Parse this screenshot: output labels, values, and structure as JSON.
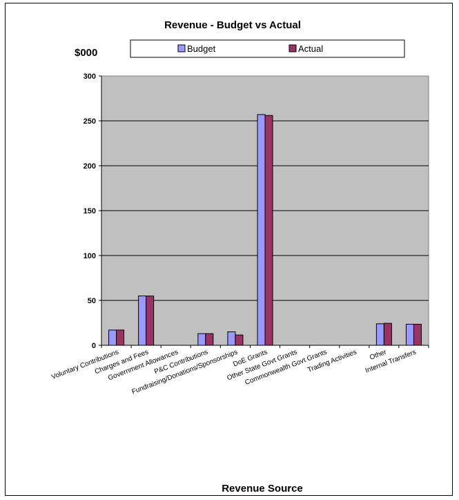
{
  "chart_data": {
    "type": "bar",
    "title": "Revenue - Budget vs Actual",
    "ylabel": "$000",
    "xlabel": "Revenue Source",
    "categories": [
      "Voluntary Contributions",
      "Charges and Fees",
      "Government Allowances",
      "P&C Contributions",
      "Fundraising/Donations/Sponsorships",
      "DoE Grants",
      "Other State Govt Grants",
      "Commonwealth Govt Grants",
      "Trading Activities",
      "Other",
      "Internal Transfers"
    ],
    "series": [
      {
        "name": "Budget",
        "color": "#9999ff",
        "values": [
          17,
          55,
          0,
          13,
          15,
          257,
          0,
          0,
          0,
          24,
          23.5
        ]
      },
      {
        "name": "Actual",
        "color": "#993366",
        "values": [
          17,
          55,
          0,
          13,
          11.5,
          256,
          0,
          0,
          0,
          24.5,
          23.5
        ]
      }
    ],
    "ylim": [
      0,
      300
    ],
    "yticks": [
      "0",
      "50",
      "100",
      "150",
      "200",
      "250",
      "300"
    ],
    "grid": true,
    "plot_background": "#c0c0c0",
    "legend_position": "top"
  }
}
